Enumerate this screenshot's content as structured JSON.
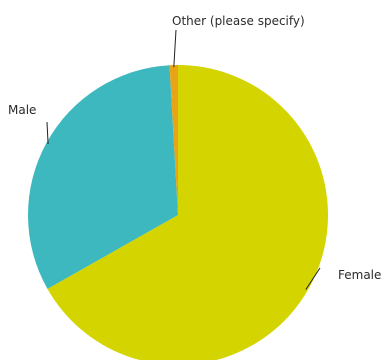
{
  "chart_data": {
    "type": "pie",
    "categories": [
      "Female",
      "Male",
      "Other (please specify)"
    ],
    "values": [
      66.8,
      32.3,
      0.9
    ],
    "colors": [
      "#d4d400",
      "#3db8be",
      "#e8a317"
    ],
    "legend": "none",
    "labels": "outside-with-leader-lines"
  }
}
